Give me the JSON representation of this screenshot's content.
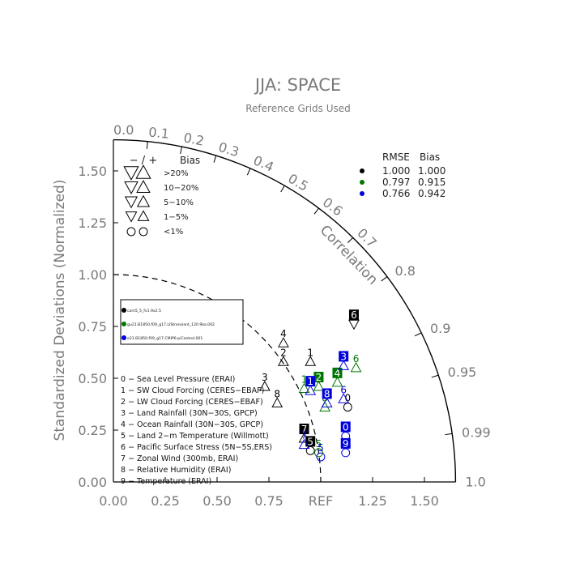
{
  "header": {
    "title": "JJA: SPACE",
    "subtitle": "Reference Grids Used"
  },
  "chart_data": {
    "type": "scatter",
    "title": "JJA: SPACE",
    "subtitle": "Reference Grids Used",
    "ylabel": "Standardized Deviations (Normalized)",
    "arc_label": "Correlation",
    "x_ticks": [
      "0.00",
      "0.25",
      "0.50",
      "0.75",
      "REF",
      "1.25",
      "1.50"
    ],
    "x_tick_values": [
      0,
      0.25,
      0.5,
      0.75,
      1.0,
      1.25,
      1.5
    ],
    "y_ticks": [
      "0.00",
      "0.25",
      "0.50",
      "0.75",
      "1.00",
      "1.25",
      "1.50"
    ],
    "y_tick_values": [
      0,
      0.25,
      0.5,
      0.75,
      1.0,
      1.25,
      1.5
    ],
    "max_std": 1.65,
    "ref_std": 1.0,
    "correlation_ticks": [
      "0.0",
      "0.1",
      "0.2",
      "0.3",
      "0.4",
      "0.5",
      "0.6",
      "0.7",
      "0.8",
      "0.9",
      "0.95",
      "0.99",
      "1.0"
    ],
    "correlation_values": [
      0.0,
      0.1,
      0.2,
      0.3,
      0.4,
      0.5,
      0.6,
      0.7,
      0.8,
      0.9,
      0.95,
      0.99,
      1.0
    ],
    "bias_legend": {
      "header_sign": "− / +",
      "header_bias": "Bias",
      "rows": [
        {
          "label": ">20%",
          "size": 1.0
        },
        {
          "label": "10−20%",
          "size": 0.8
        },
        {
          "label": "5−10%",
          "size": 0.65
        },
        {
          "label": "1−5%",
          "size": 0.5
        },
        {
          "label": "<1%",
          "size": 0.0
        }
      ]
    },
    "stats_legend": {
      "headers": [
        "RMSE",
        "Bias"
      ],
      "rows": [
        {
          "rmse": "1.000",
          "bias": "1.000",
          "color": "#000000"
        },
        {
          "rmse": "0.797",
          "bias": "0.915",
          "color": "#007700"
        },
        {
          "rmse": "0.766",
          "bias": "0.942",
          "color": "#0000dd"
        }
      ]
    },
    "cases": [
      {
        "name": "cam5_5_fv1.9x2.5",
        "color": "#000000"
      },
      {
        "name": "gu21.B1850.f09_g17.LIStransient_120.9ka.002",
        "color": "#007700"
      },
      {
        "name": "e21.B1850.f09_g17.CMIP6-piControl.001",
        "color": "#0000dd"
      }
    ],
    "variables": [
      "0 − Sea Level Pressure (ERAI)",
      "1 − SW Cloud Forcing (CERES−EBAF)",
      "2 − LW Cloud Forcing (CERES−EBAF)",
      "3 − Land Rainfall (30N−30S, GPCP)",
      "4 − Ocean Rainfall (30N−30S, GPCP)",
      "5 − Land 2−m Temperature (Willmott)",
      "6 − Pacific Surface Stress (5N−5S,ERS)",
      "7 − Zonal Wind (300mb, ERAI)",
      "8 − Relative Humidity (ERAI)",
      "9 − Temperature (ERAI)"
    ],
    "series": [
      {
        "name": "cam5_5_fv1.9x2.5",
        "color": "#000000",
        "points": [
          {
            "id": "0",
            "x": 1.13,
            "y": 0.4,
            "marker": "circle",
            "boxed": false
          },
          {
            "id": "1",
            "x": 0.95,
            "y": 0.62,
            "marker": "up",
            "boxed": false
          },
          {
            "id": "2",
            "x": 0.82,
            "y": 0.62,
            "marker": "up",
            "boxed": false
          },
          {
            "id": "3",
            "x": 0.73,
            "y": 0.5,
            "marker": "up",
            "boxed": false
          },
          {
            "id": "4",
            "x": 0.82,
            "y": 0.71,
            "marker": "up",
            "boxed": false
          },
          {
            "id": "5",
            "x": 0.95,
            "y": 0.19,
            "marker": "circle",
            "boxed": true
          },
          {
            "id": "6",
            "x": 1.16,
            "y": 0.8,
            "marker": "down",
            "boxed": true
          },
          {
            "id": "7",
            "x": 0.92,
            "y": 0.25,
            "marker": "up",
            "boxed": true
          },
          {
            "id": "8",
            "x": 0.79,
            "y": 0.42,
            "marker": "up",
            "boxed": false
          }
        ]
      },
      {
        "name": "gu21.B1850.f09_g17.LIStransient_120.9ka.002",
        "color": "#007700",
        "points": [
          {
            "id": "1",
            "x": 0.92,
            "y": 0.49,
            "marker": "up",
            "boxed": false
          },
          {
            "id": "2",
            "x": 0.99,
            "y": 0.5,
            "marker": "up",
            "boxed": true
          },
          {
            "id": "4",
            "x": 1.08,
            "y": 0.52,
            "marker": "up",
            "boxed": true
          },
          {
            "id": "5",
            "x": 0.99,
            "y": 0.18,
            "marker": "circle",
            "boxed": false
          },
          {
            "id": "6",
            "x": 1.17,
            "y": 0.59,
            "marker": "up",
            "boxed": false
          },
          {
            "id": "8",
            "x": 1.02,
            "y": 0.4,
            "marker": "up",
            "boxed": false
          }
        ]
      },
      {
        "name": "e21.B1850.f09_g17.CMIP6-piControl.001",
        "color": "#0000dd",
        "points": [
          {
            "id": "0",
            "x": 1.12,
            "y": 0.26,
            "marker": "circle",
            "boxed": true
          },
          {
            "id": "1",
            "x": 0.95,
            "y": 0.48,
            "marker": "up",
            "boxed": true
          },
          {
            "id": "3",
            "x": 1.11,
            "y": 0.6,
            "marker": "up",
            "boxed": true
          },
          {
            "id": "5",
            "x": 1.0,
            "y": 0.16,
            "marker": "circle",
            "boxed": false
          },
          {
            "id": "6",
            "x": 1.11,
            "y": 0.44,
            "marker": "up",
            "boxed": false
          },
          {
            "id": "7",
            "x": 0.92,
            "y": 0.22,
            "marker": "up",
            "boxed": false
          },
          {
            "id": "8",
            "x": 1.03,
            "y": 0.42,
            "marker": "up",
            "boxed": true
          },
          {
            "id": "9",
            "x": 1.12,
            "y": 0.18,
            "marker": "circle",
            "boxed": true
          }
        ]
      }
    ]
  }
}
